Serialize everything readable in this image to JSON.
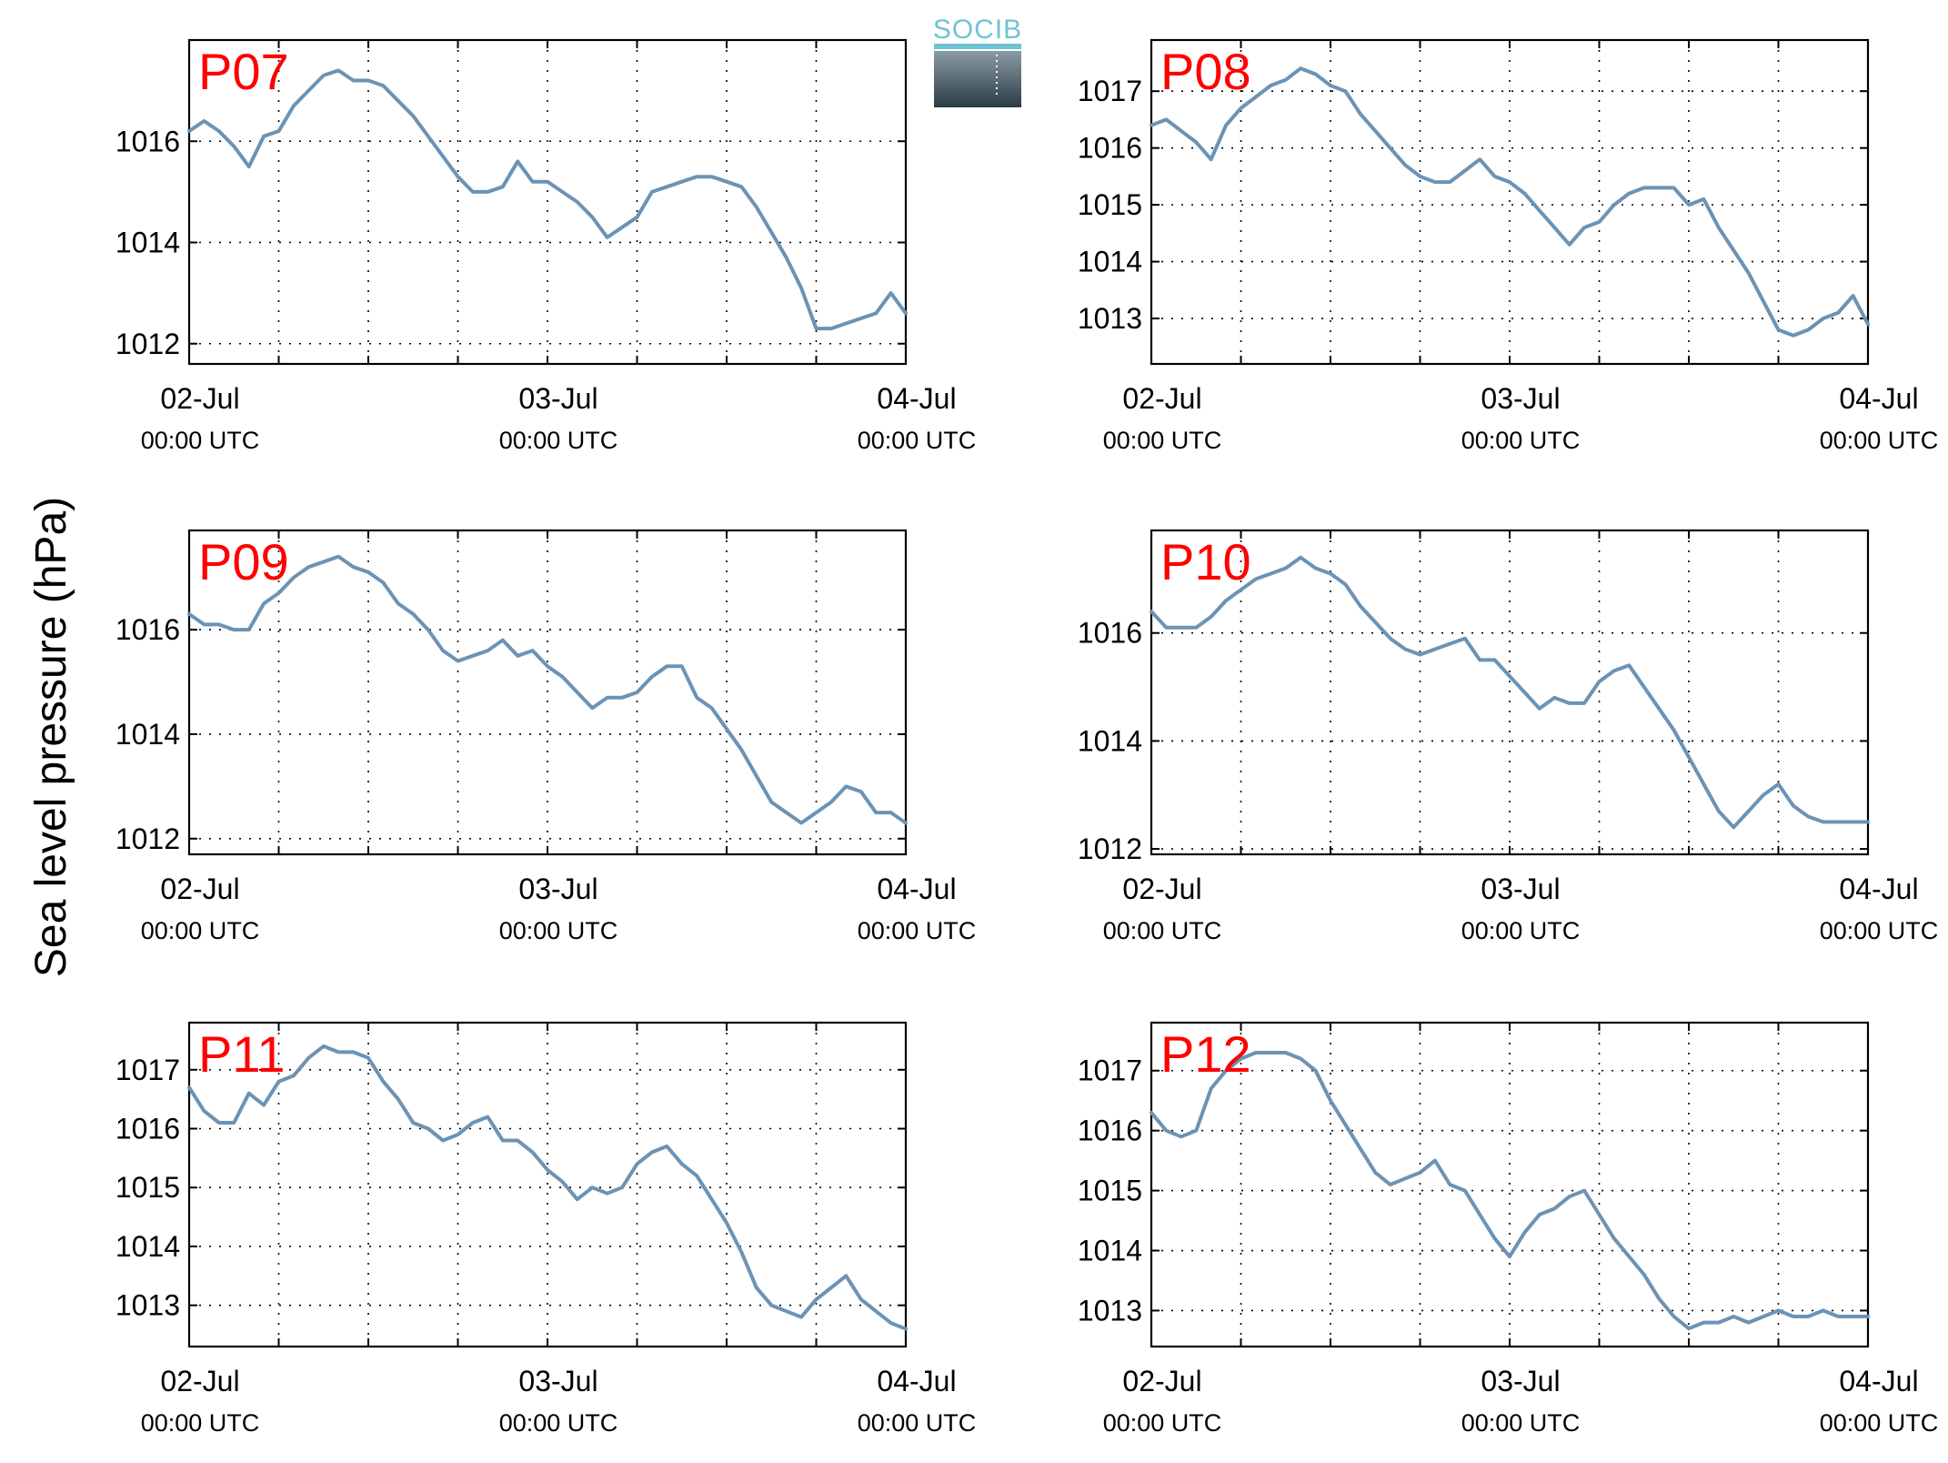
{
  "ylabel": "Sea level pressure (hPa)",
  "logo": {
    "text": "SOCIB"
  },
  "x_tick_labels": [
    {
      "date": "02-Jul",
      "time": "00:00 UTC"
    },
    {
      "date": "03-Jul",
      "time": "00:00 UTC"
    },
    {
      "date": "04-Jul",
      "time": "00:00 UTC"
    }
  ],
  "colors": {
    "series": "#6b93b5",
    "panel_label": "#ff0000",
    "logo": "#6ec4d2"
  },
  "chart_data": [
    {
      "type": "line",
      "name": "P07",
      "xlim": [
        0,
        48
      ],
      "ylim": [
        1011.6,
        1018.0
      ],
      "yticks": [
        1012,
        1014,
        1016
      ],
      "x": [
        0,
        1,
        2,
        3,
        4,
        5,
        6,
        7,
        8,
        9,
        10,
        11,
        12,
        13,
        14,
        15,
        16,
        17,
        18,
        19,
        20,
        21,
        22,
        23,
        24,
        25,
        26,
        27,
        28,
        29,
        30,
        31,
        32,
        33,
        34,
        35,
        36,
        37,
        38,
        39,
        40,
        41,
        42,
        43,
        44,
        45,
        46,
        47,
        48
      ],
      "y": [
        1016.2,
        1016.4,
        1016.2,
        1015.9,
        1015.5,
        1016.1,
        1016.2,
        1016.7,
        1017.0,
        1017.3,
        1017.4,
        1017.2,
        1017.2,
        1017.1,
        1016.8,
        1016.5,
        1016.1,
        1015.7,
        1015.3,
        1015.0,
        1015.0,
        1015.1,
        1015.6,
        1015.2,
        1015.2,
        1015.0,
        1014.8,
        1014.5,
        1014.1,
        1014.3,
        1014.5,
        1015.0,
        1015.1,
        1015.2,
        1015.3,
        1015.3,
        1015.2,
        1015.1,
        1014.7,
        1014.2,
        1013.7,
        1013.1,
        1012.3,
        1012.3,
        1012.4,
        1012.5,
        1012.6,
        1013.0,
        1012.6
      ]
    },
    {
      "type": "line",
      "name": "P08",
      "xlim": [
        0,
        48
      ],
      "ylim": [
        1012.2,
        1017.9
      ],
      "yticks": [
        1013,
        1014,
        1015,
        1016,
        1017
      ],
      "x": [
        0,
        1,
        2,
        3,
        4,
        5,
        6,
        7,
        8,
        9,
        10,
        11,
        12,
        13,
        14,
        15,
        16,
        17,
        18,
        19,
        20,
        21,
        22,
        23,
        24,
        25,
        26,
        27,
        28,
        29,
        30,
        31,
        32,
        33,
        34,
        35,
        36,
        37,
        38,
        39,
        40,
        41,
        42,
        43,
        44,
        45,
        46,
        47,
        48
      ],
      "y": [
        1016.4,
        1016.5,
        1016.3,
        1016.1,
        1015.8,
        1016.4,
        1016.7,
        1016.9,
        1017.1,
        1017.2,
        1017.4,
        1017.3,
        1017.1,
        1017.0,
        1016.6,
        1016.3,
        1016.0,
        1015.7,
        1015.5,
        1015.4,
        1015.4,
        1015.6,
        1015.8,
        1015.5,
        1015.4,
        1015.2,
        1014.9,
        1014.6,
        1014.3,
        1014.6,
        1014.7,
        1015.0,
        1015.2,
        1015.3,
        1015.3,
        1015.3,
        1015.0,
        1015.1,
        1014.6,
        1014.2,
        1013.8,
        1013.3,
        1012.8,
        1012.7,
        1012.8,
        1013.0,
        1013.1,
        1013.4,
        1012.9
      ]
    },
    {
      "type": "line",
      "name": "P09",
      "xlim": [
        0,
        48
      ],
      "ylim": [
        1011.7,
        1017.9
      ],
      "yticks": [
        1012,
        1014,
        1016
      ],
      "x": [
        0,
        1,
        2,
        3,
        4,
        5,
        6,
        7,
        8,
        9,
        10,
        11,
        12,
        13,
        14,
        15,
        16,
        17,
        18,
        19,
        20,
        21,
        22,
        23,
        24,
        25,
        26,
        27,
        28,
        29,
        30,
        31,
        32,
        33,
        34,
        35,
        36,
        37,
        38,
        39,
        40,
        41,
        42,
        43,
        44,
        45,
        46,
        47,
        48
      ],
      "y": [
        1016.3,
        1016.1,
        1016.1,
        1016.0,
        1016.0,
        1016.5,
        1016.7,
        1017.0,
        1017.2,
        1017.3,
        1017.4,
        1017.2,
        1017.1,
        1016.9,
        1016.5,
        1016.3,
        1016.0,
        1015.6,
        1015.4,
        1015.5,
        1015.6,
        1015.8,
        1015.5,
        1015.6,
        1015.3,
        1015.1,
        1014.8,
        1014.5,
        1014.7,
        1014.7,
        1014.8,
        1015.1,
        1015.3,
        1015.3,
        1014.7,
        1014.5,
        1014.1,
        1013.7,
        1013.2,
        1012.7,
        1012.5,
        1012.3,
        1012.5,
        1012.7,
        1013.0,
        1012.9,
        1012.5,
        1012.5,
        1012.3
      ]
    },
    {
      "type": "line",
      "name": "P10",
      "xlim": [
        0,
        48
      ],
      "ylim": [
        1011.9,
        1017.9
      ],
      "yticks": [
        1012,
        1014,
        1016
      ],
      "x": [
        0,
        1,
        2,
        3,
        4,
        5,
        6,
        7,
        8,
        9,
        10,
        11,
        12,
        13,
        14,
        15,
        16,
        17,
        18,
        19,
        20,
        21,
        22,
        23,
        24,
        25,
        26,
        27,
        28,
        29,
        30,
        31,
        32,
        33,
        34,
        35,
        36,
        37,
        38,
        39,
        40,
        41,
        42,
        43,
        44,
        45,
        46,
        47,
        48
      ],
      "y": [
        1016.4,
        1016.1,
        1016.1,
        1016.1,
        1016.3,
        1016.6,
        1016.8,
        1017.0,
        1017.1,
        1017.2,
        1017.4,
        1017.2,
        1017.1,
        1016.9,
        1016.5,
        1016.2,
        1015.9,
        1015.7,
        1015.6,
        1015.7,
        1015.8,
        1015.9,
        1015.5,
        1015.5,
        1015.2,
        1014.9,
        1014.6,
        1014.8,
        1014.7,
        1014.7,
        1015.1,
        1015.3,
        1015.4,
        1015.0,
        1014.6,
        1014.2,
        1013.7,
        1013.2,
        1012.7,
        1012.4,
        1012.7,
        1013.0,
        1013.2,
        1012.8,
        1012.6,
        1012.5,
        1012.5,
        1012.5,
        1012.5
      ]
    },
    {
      "type": "line",
      "name": "P11",
      "xlim": [
        0,
        48
      ],
      "ylim": [
        1012.3,
        1017.8
      ],
      "yticks": [
        1013,
        1014,
        1015,
        1016,
        1017
      ],
      "x": [
        0,
        1,
        2,
        3,
        4,
        5,
        6,
        7,
        8,
        9,
        10,
        11,
        12,
        13,
        14,
        15,
        16,
        17,
        18,
        19,
        20,
        21,
        22,
        23,
        24,
        25,
        26,
        27,
        28,
        29,
        30,
        31,
        32,
        33,
        34,
        35,
        36,
        37,
        38,
        39,
        40,
        41,
        42,
        43,
        44,
        45,
        46,
        47,
        48
      ],
      "y": [
        1016.7,
        1016.3,
        1016.1,
        1016.1,
        1016.6,
        1016.4,
        1016.8,
        1016.9,
        1017.2,
        1017.4,
        1017.3,
        1017.3,
        1017.2,
        1016.8,
        1016.5,
        1016.1,
        1016.0,
        1015.8,
        1015.9,
        1016.1,
        1016.2,
        1015.8,
        1015.8,
        1015.6,
        1015.3,
        1015.1,
        1014.8,
        1015.0,
        1014.9,
        1015.0,
        1015.4,
        1015.6,
        1015.7,
        1015.4,
        1015.2,
        1014.8,
        1014.4,
        1013.9,
        1013.3,
        1013.0,
        1012.9,
        1012.8,
        1013.1,
        1013.3,
        1013.5,
        1013.1,
        1012.9,
        1012.7,
        1012.6
      ]
    },
    {
      "type": "line",
      "name": "P12",
      "xlim": [
        0,
        48
      ],
      "ylim": [
        1012.4,
        1017.8
      ],
      "yticks": [
        1013,
        1014,
        1015,
        1016,
        1017
      ],
      "x": [
        0,
        1,
        2,
        3,
        4,
        5,
        6,
        7,
        8,
        9,
        10,
        11,
        12,
        13,
        14,
        15,
        16,
        17,
        18,
        19,
        20,
        21,
        22,
        23,
        24,
        25,
        26,
        27,
        28,
        29,
        30,
        31,
        32,
        33,
        34,
        35,
        36,
        37,
        38,
        39,
        40,
        41,
        42,
        43,
        44,
        45,
        46,
        47,
        48
      ],
      "y": [
        1016.3,
        1016.0,
        1015.9,
        1016.0,
        1016.7,
        1017.0,
        1017.2,
        1017.3,
        1017.3,
        1017.3,
        1017.2,
        1017.0,
        1016.5,
        1016.1,
        1015.7,
        1015.3,
        1015.1,
        1015.2,
        1015.3,
        1015.5,
        1015.1,
        1015.0,
        1014.6,
        1014.2,
        1013.9,
        1014.3,
        1014.6,
        1014.7,
        1014.9,
        1015.0,
        1014.6,
        1014.2,
        1013.9,
        1013.6,
        1013.2,
        1012.9,
        1012.7,
        1012.8,
        1012.8,
        1012.9,
        1012.8,
        1012.9,
        1013.0,
        1012.9,
        1012.9,
        1013.0,
        1012.9,
        1012.9,
        1012.9
      ]
    }
  ]
}
